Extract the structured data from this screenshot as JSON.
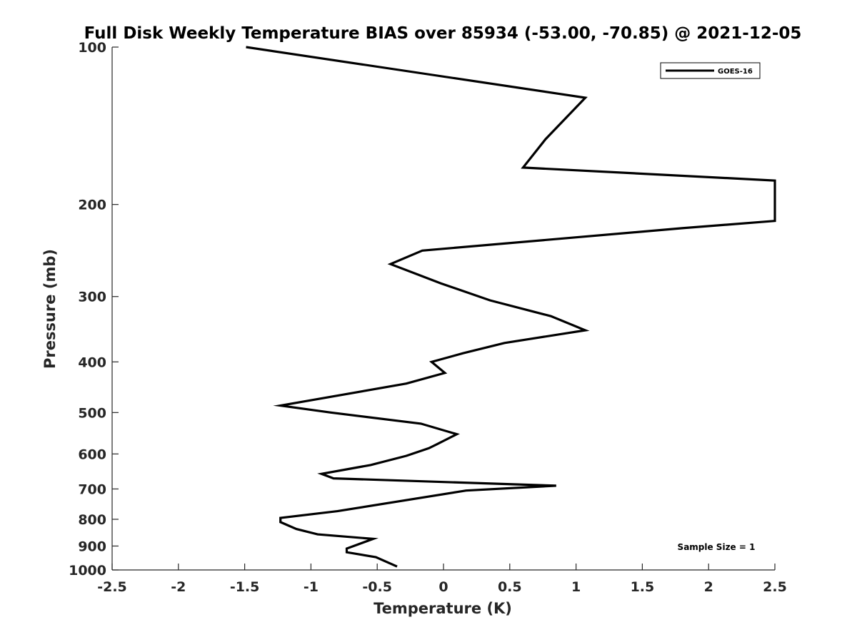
{
  "chart_data": {
    "type": "line",
    "title": "Full Disk Weekly Temperature BIAS over 85934 (-53.00, -70.85) @ 2021-12-05",
    "xlabel": "Temperature (K)",
    "ylabel": "Pressure (mb)",
    "xlim": [
      -2.5,
      2.5
    ],
    "ylim": [
      100,
      1000
    ],
    "y_scale": "log",
    "y_reversed": true,
    "grid": false,
    "x_ticks": [
      "-2.5",
      "-2",
      "-1.5",
      "-1",
      "-0.5",
      "0",
      "0.5",
      "1",
      "1.5",
      "2",
      "2.5"
    ],
    "y_ticks": [
      "100",
      "200",
      "300",
      "400",
      "500",
      "600",
      "700",
      "800",
      "900",
      "1000"
    ],
    "legend": {
      "placement": "top-right",
      "entries": [
        "GOES-16"
      ]
    },
    "annotation": "Sample Size = 1",
    "line_color": "#000000",
    "series": [
      {
        "name": "GOES-16",
        "points": [
          [
            -1.49,
            100
          ],
          [
            1.07,
            125
          ],
          [
            0.77,
            150
          ],
          [
            0.6,
            170
          ],
          [
            2.5,
            180
          ],
          [
            2.5,
            215
          ],
          [
            1.8,
            222
          ],
          [
            -0.16,
            245
          ],
          [
            -0.4,
            260
          ],
          [
            -0.02,
            283
          ],
          [
            0.35,
            305
          ],
          [
            0.81,
            327
          ],
          [
            1.07,
            348
          ],
          [
            0.46,
            368
          ],
          [
            0.15,
            385
          ],
          [
            -0.09,
            400
          ],
          [
            0.01,
            420
          ],
          [
            -0.28,
            440
          ],
          [
            -1.23,
            485
          ],
          [
            -0.85,
            500
          ],
          [
            -0.17,
            525
          ],
          [
            0.1,
            550
          ],
          [
            -0.05,
            575
          ],
          [
            -0.11,
            585
          ],
          [
            -0.28,
            605
          ],
          [
            -0.55,
            630
          ],
          [
            -0.92,
            655
          ],
          [
            -0.83,
            668
          ],
          [
            0.85,
            690
          ],
          [
            0.17,
            705
          ],
          [
            -0.8,
            772
          ],
          [
            -1.23,
            795
          ],
          [
            -1.23,
            810
          ],
          [
            -1.11,
            835
          ],
          [
            -0.95,
            855
          ],
          [
            -0.53,
            872
          ],
          [
            -0.73,
            910
          ],
          [
            -0.73,
            925
          ],
          [
            -0.51,
            945
          ],
          [
            -0.35,
            985
          ]
        ]
      }
    ]
  }
}
